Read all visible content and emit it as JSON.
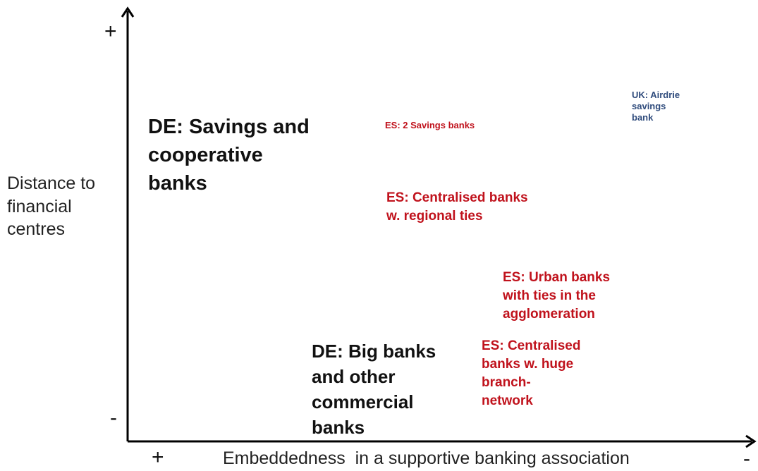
{
  "axes": {
    "y_title": "Distance to\nfinancial\ncentres",
    "x_title": "Embeddedness  in a supportive banking association",
    "y_top_sign": "+",
    "y_bottom_sign": "-",
    "x_left_sign": "+",
    "x_right_sign": "-"
  },
  "labels": {
    "de_savings": "DE: Savings and\ncooperative\nbanks",
    "de_big": "DE: Big banks\nand other\ncommercial\nbanks",
    "es_savings": "ES: 2 Savings banks",
    "es_centralised_regional": "ES: Centralised banks\nw. regional ties",
    "es_urban": "ES: Urban banks\nwith ties in the\nagglomeration",
    "es_centralised_branch": "ES: Centralised\nbanks  w. huge\nbranch-\nnetwork",
    "uk_airdrie": "UK: Airdrie\nsavings\nbank"
  },
  "colors": {
    "de": "#111111",
    "es": "#c0121c",
    "uk": "#2f4b7c",
    "axis": "#000000"
  }
}
